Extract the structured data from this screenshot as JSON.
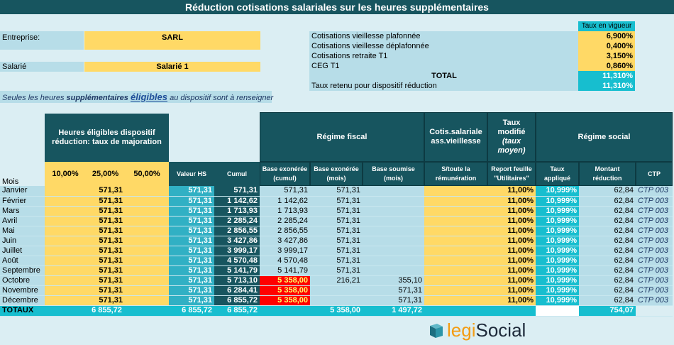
{
  "title": "Réduction cotisations salariales sur les heures supplémentaires",
  "company": {
    "label": "Entreprise:",
    "value": "SARL"
  },
  "employee": {
    "label": "Salarié",
    "value": "Salarié 1"
  },
  "rates": {
    "header": "Taux en vigueur",
    "items": [
      {
        "label": "Cotisations vieillesse plafonnée",
        "value": "6,900%"
      },
      {
        "label": "Cotisations vieillesse déplafonnée",
        "value": "0,400%"
      },
      {
        "label": "Cotisations retraite T1",
        "value": "3,150%"
      },
      {
        "label": "CEG T1",
        "value": "0,860%"
      }
    ],
    "total_label": "TOTAL",
    "total_value": "11,310%",
    "retained_label": "Taux retenu pour dispositif réduction",
    "retained_value": "11,310%"
  },
  "note": {
    "part1": "Seules les heures ",
    "part2": "supplémentaires",
    "part3": "éligibles",
    "part4": " au dispositif sont à renseigner"
  },
  "headers": {
    "heures": "Heures éligibles dispositif réduction: taux de majoration",
    "regime_fiscal": "Régime fiscal",
    "cotis": "Cotis.salariale ass.vieillesse",
    "taux_modifie_1": "Taux modifié",
    "taux_modifie_2": "(taux moyen)",
    "regime_social": "Régime social",
    "mois": "Mois",
    "p10": "10,00%",
    "p25": "25,00%",
    "p50": "50,00%",
    "valeur_hs": "Valeur HS",
    "cumul": "Cumul",
    "base_exo_cumul": "Base exonérée (cumul)",
    "base_exo_mois": "Base exonérée (mois)",
    "base_soumise": "Base soumise (mois)",
    "s_toute": "S/toute la rémunération",
    "report": "Report feuille \"Utilitaires\"",
    "taux_applique": "Taux appliqué",
    "montant_reduction": "Montant réduction",
    "ctp": "CTP"
  },
  "rows": [
    {
      "mois": "Janvier",
      "p25": "571,31",
      "valeur": "571,31",
      "cumul": "571,31",
      "exo_cumul": "571,31",
      "exo_mois": "571,31",
      "soumise": "",
      "report": "11,00%",
      "taux": "10,999%",
      "montant": "62,84",
      "ctp": "CTP 003",
      "red": false
    },
    {
      "mois": "Février",
      "p25": "571,31",
      "valeur": "571,31",
      "cumul": "1 142,62",
      "exo_cumul": "1 142,62",
      "exo_mois": "571,31",
      "soumise": "",
      "report": "11,00%",
      "taux": "10,999%",
      "montant": "62,84",
      "ctp": "CTP 003",
      "red": false
    },
    {
      "mois": "Mars",
      "p25": "571,31",
      "valeur": "571,31",
      "cumul": "1 713,93",
      "exo_cumul": "1 713,93",
      "exo_mois": "571,31",
      "soumise": "",
      "report": "11,00%",
      "taux": "10,999%",
      "montant": "62,84",
      "ctp": "CTP 003",
      "red": false
    },
    {
      "mois": "Avril",
      "p25": "571,31",
      "valeur": "571,31",
      "cumul": "2 285,24",
      "exo_cumul": "2 285,24",
      "exo_mois": "571,31",
      "soumise": "",
      "report": "11,00%",
      "taux": "10,999%",
      "montant": "62,84",
      "ctp": "CTP 003",
      "red": false
    },
    {
      "mois": "Mai",
      "p25": "571,31",
      "valeur": "571,31",
      "cumul": "2 856,55",
      "exo_cumul": "2 856,55",
      "exo_mois": "571,31",
      "soumise": "",
      "report": "11,00%",
      "taux": "10,999%",
      "montant": "62,84",
      "ctp": "CTP 003",
      "red": false
    },
    {
      "mois": "Juin",
      "p25": "571,31",
      "valeur": "571,31",
      "cumul": "3 427,86",
      "exo_cumul": "3 427,86",
      "exo_mois": "571,31",
      "soumise": "",
      "report": "11,00%",
      "taux": "10,999%",
      "montant": "62,84",
      "ctp": "CTP 003",
      "red": false
    },
    {
      "mois": "Juillet",
      "p25": "571,31",
      "valeur": "571,31",
      "cumul": "3 999,17",
      "exo_cumul": "3 999,17",
      "exo_mois": "571,31",
      "soumise": "",
      "report": "11,00%",
      "taux": "10,999%",
      "montant": "62,84",
      "ctp": "CTP 003",
      "red": false
    },
    {
      "mois": "Août",
      "p25": "571,31",
      "valeur": "571,31",
      "cumul": "4 570,48",
      "exo_cumul": "4 570,48",
      "exo_mois": "571,31",
      "soumise": "",
      "report": "11,00%",
      "taux": "10,999%",
      "montant": "62,84",
      "ctp": "CTP 003",
      "red": false
    },
    {
      "mois": "Septembre",
      "p25": "571,31",
      "valeur": "571,31",
      "cumul": "5 141,79",
      "exo_cumul": "5 141,79",
      "exo_mois": "571,31",
      "soumise": "",
      "report": "11,00%",
      "taux": "10,999%",
      "montant": "62,84",
      "ctp": "CTP 003",
      "red": false
    },
    {
      "mois": "Octobre",
      "p25": "571,31",
      "valeur": "571,31",
      "cumul": "5 713,10",
      "exo_cumul": "5 358,00",
      "exo_mois": "216,21",
      "soumise": "355,10",
      "report": "11,00%",
      "taux": "10,999%",
      "montant": "62,84",
      "ctp": "CTP 003",
      "red": true
    },
    {
      "mois": "Novembre",
      "p25": "571,31",
      "valeur": "571,31",
      "cumul": "6 284,41",
      "exo_cumul": "5 358,00",
      "exo_mois": "",
      "soumise": "571,31",
      "report": "11,00%",
      "taux": "10,999%",
      "montant": "62,84",
      "ctp": "CTP 003",
      "red": true
    },
    {
      "mois": "Décembre",
      "p25": "571,31",
      "valeur": "571,31",
      "cumul": "6 855,72",
      "exo_cumul": "5 358,00",
      "exo_mois": "",
      "soumise": "571,31",
      "report": "11,00%",
      "taux": "10,999%",
      "montant": "62,84",
      "ctp": "CTP 003",
      "red": true
    }
  ],
  "totals": {
    "label": "TOTAUX",
    "p25": "6 855,72",
    "valeur": "6 855,72",
    "cumul": "6 855,72",
    "exo_mois": "5 358,00",
    "soumise": "1 497,72",
    "montant": "754,07"
  },
  "logo": {
    "part1": "legi",
    "part2": "Social"
  },
  "colors": {
    "dark_teal": "#17555f",
    "yellow": "#ffd966",
    "turquoise": "#17becf",
    "light_blue": "#b7dde8",
    "red": "#ff0000"
  }
}
